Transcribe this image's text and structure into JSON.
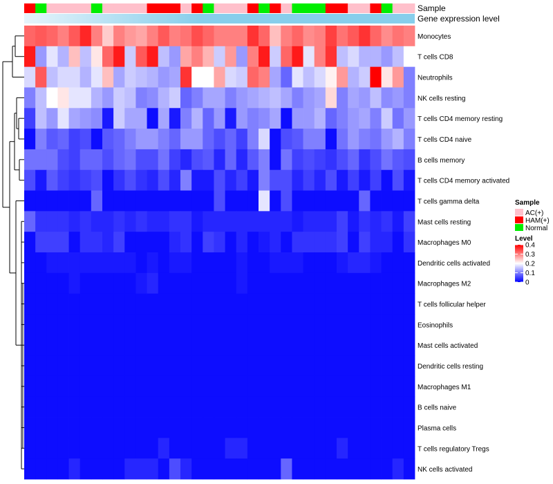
{
  "chart_data": {
    "type": "heatmap",
    "annotation_rows": [
      "Sample",
      "Gene expression level"
    ],
    "sample_annotation": [
      "HAM",
      "Normal",
      "AC",
      "AC",
      "AC",
      "AC",
      "Normal",
      "AC",
      "AC",
      "AC",
      "AC",
      "HAM",
      "HAM",
      "HAM",
      "AC",
      "HAM",
      "Normal",
      "AC",
      "AC",
      "AC",
      "HAM",
      "Normal",
      "HAM",
      "AC",
      "Normal",
      "Normal",
      "Normal",
      "HAM",
      "HAM",
      "AC",
      "AC",
      "HAM",
      "Normal",
      "AC",
      "AC"
    ],
    "rows": [
      "Monocytes",
      "T cells CD8",
      "Neutrophils",
      "NK cells resting",
      "T cells CD4 memory resting",
      "T cells CD4 naive",
      "B cells memory",
      "T cells CD4 memory activated",
      "T cells gamma delta",
      "Mast cells resting",
      "Macrophages M0",
      "Dendritic cells activated",
      "Macrophages M2",
      "T cells follicular helper",
      "Eosinophils",
      "Mast cells activated",
      "Dendritic cells resting",
      "Macrophages M1",
      "B cells naive",
      "Plasma cells",
      "T cells regulatory  Tregs",
      "NK cells activated"
    ],
    "values": [
      [
        0.32,
        0.33,
        0.32,
        0.3,
        0.33,
        0.37,
        0.3,
        0.24,
        0.3,
        0.28,
        0.27,
        0.3,
        0.33,
        0.3,
        0.31,
        0.34,
        0.32,
        0.3,
        0.3,
        0.3,
        0.36,
        0.32,
        0.25,
        0.3,
        0.32,
        0.29,
        0.3,
        0.35,
        0.31,
        0.33,
        0.36,
        0.32,
        0.29,
        0.31,
        0.3
      ],
      [
        0.38,
        0.12,
        0.18,
        0.14,
        0.25,
        0.15,
        0.22,
        0.32,
        0.38,
        0.16,
        0.33,
        0.38,
        0.15,
        0.12,
        0.27,
        0.3,
        0.26,
        0.16,
        0.28,
        0.12,
        0.3,
        0.38,
        0.16,
        0.32,
        0.38,
        0.18,
        0.3,
        0.36,
        0.15,
        0.17,
        0.14,
        0.14,
        0.12,
        0.15,
        0.2
      ],
      [
        0.17,
        0.33,
        0.15,
        0.17,
        0.17,
        0.14,
        0.18,
        0.25,
        0.13,
        0.16,
        0.15,
        0.14,
        0.12,
        0.13,
        0.36,
        0.2,
        0.2,
        0.27,
        0.17,
        0.16,
        0.32,
        0.3,
        0.13,
        0.08,
        0.18,
        0.15,
        0.17,
        0.21,
        0.28,
        0.14,
        0.16,
        0.4,
        0.22,
        0.28,
        0.1
      ],
      [
        0.1,
        0.15,
        0.2,
        0.22,
        0.18,
        0.18,
        0.14,
        0.12,
        0.16,
        0.15,
        0.1,
        0.11,
        0.14,
        0.16,
        0.08,
        0.1,
        0.13,
        0.13,
        0.1,
        0.12,
        0.13,
        0.14,
        0.15,
        0.13,
        0.1,
        0.12,
        0.13,
        0.23,
        0.1,
        0.13,
        0.12,
        0.15,
        0.11,
        0.12,
        0.1
      ],
      [
        0.05,
        0.15,
        0.12,
        0.18,
        0.13,
        0.12,
        0.11,
        0.02,
        0.16,
        0.13,
        0.13,
        0.01,
        0.13,
        0.02,
        0.1,
        0.14,
        0.08,
        0.12,
        0.02,
        0.12,
        0.1,
        0.11,
        0.13,
        0.01,
        0.12,
        0.12,
        0.14,
        0.08,
        0.1,
        0.12,
        0.13,
        0.1,
        0.16,
        0.09,
        0.12
      ],
      [
        0.01,
        0.1,
        0.07,
        0.08,
        0.05,
        0.06,
        0.01,
        0.07,
        0.08,
        0.1,
        0.12,
        0.12,
        0.1,
        0.08,
        0.12,
        0.12,
        0.08,
        0.06,
        0.08,
        0.05,
        0.1,
        0.17,
        0.01,
        0.06,
        0.07,
        0.1,
        0.1,
        0.01,
        0.09,
        0.12,
        0.1,
        0.09,
        0.12,
        0.14,
        0.1
      ],
      [
        0.09,
        0.09,
        0.09,
        0.06,
        0.05,
        0.08,
        0.08,
        0.06,
        0.08,
        0.09,
        0.06,
        0.06,
        0.09,
        0.05,
        0.03,
        0.06,
        0.07,
        0.03,
        0.08,
        0.03,
        0.07,
        0.1,
        0.01,
        0.09,
        0.05,
        0.06,
        0.05,
        0.04,
        0.06,
        0.08,
        0.04,
        0.06,
        0.09,
        0.07,
        0.06
      ],
      [
        0.06,
        0.02,
        0.07,
        0.05,
        0.04,
        0.05,
        0.06,
        0.01,
        0.04,
        0.06,
        0.04,
        0.03,
        0.06,
        0.03,
        0.1,
        0.02,
        0.02,
        0.06,
        0.03,
        0.05,
        0.02,
        0.1,
        0.06,
        0.06,
        0.03,
        0.05,
        0.03,
        0.06,
        0.02,
        0.05,
        0.02,
        0.05,
        0.01,
        0.06,
        0.02
      ],
      [
        0.01,
        0.01,
        0.01,
        0.01,
        0.01,
        0.01,
        0.08,
        0.01,
        0.01,
        0.01,
        0.01,
        0.01,
        0.01,
        0.01,
        0.01,
        0.01,
        0.01,
        0.06,
        0.01,
        0.01,
        0.01,
        0.18,
        0.01,
        0.06,
        0.01,
        0.01,
        0.01,
        0.01,
        0.01,
        0.01,
        0.08,
        0.01,
        0.01,
        0.01,
        0.01
      ],
      [
        0.08,
        0.04,
        0.04,
        0.04,
        0.03,
        0.04,
        0.03,
        0.03,
        0.04,
        0.03,
        0.04,
        0.03,
        0.03,
        0.04,
        0.04,
        0.02,
        0.03,
        0.03,
        0.03,
        0.03,
        0.03,
        0.03,
        0.03,
        0.03,
        0.02,
        0.03,
        0.03,
        0.03,
        0.05,
        0.02,
        0.04,
        0.03,
        0.04,
        0.02,
        0.05
      ],
      [
        0.01,
        0.05,
        0.05,
        0.05,
        0.01,
        0.04,
        0.04,
        0.03,
        0.05,
        0.01,
        0.01,
        0.01,
        0.01,
        0.03,
        0.04,
        0.01,
        0.05,
        0.04,
        0.01,
        0.03,
        0.01,
        0.02,
        0.03,
        0.01,
        0.04,
        0.04,
        0.04,
        0.04,
        0.05,
        0.01,
        0.05,
        0.03,
        0.03,
        0.01,
        0.04
      ],
      [
        0.01,
        0.01,
        0.02,
        0.02,
        0.02,
        0.02,
        0.02,
        0.02,
        0.02,
        0.02,
        0.01,
        0.02,
        0.01,
        0.02,
        0.02,
        0.01,
        0.01,
        0.01,
        0.01,
        0.02,
        0.01,
        0.01,
        0.02,
        0.02,
        0.02,
        0.01,
        0.01,
        0.01,
        0.02,
        0.03,
        0.03,
        0.02,
        0.01,
        0.01,
        0.01
      ],
      [
        0.01,
        0.01,
        0.01,
        0.01,
        0.02,
        0.01,
        0.01,
        0.01,
        0.01,
        0.01,
        0.02,
        0.03,
        0.01,
        0.01,
        0.01,
        0.01,
        0.01,
        0.01,
        0.01,
        0.02,
        0.01,
        0.01,
        0.01,
        0.01,
        0.01,
        0.01,
        0.01,
        0.01,
        0.01,
        0.01,
        0.01,
        0.01,
        0.01,
        0.01,
        0.01
      ],
      [
        0.01,
        0.01,
        0.01,
        0.01,
        0.01,
        0.01,
        0.01,
        0.01,
        0.01,
        0.01,
        0.01,
        0.01,
        0.01,
        0.01,
        0.01,
        0.01,
        0.01,
        0.01,
        0.01,
        0.01,
        0.01,
        0.01,
        0.01,
        0.01,
        0.01,
        0.01,
        0.01,
        0.01,
        0.01,
        0.01,
        0.01,
        0.01,
        0.01,
        0.01,
        0.01
      ],
      [
        0.01,
        0.01,
        0.01,
        0.01,
        0.01,
        0.01,
        0.01,
        0.01,
        0.01,
        0.01,
        0.01,
        0.01,
        0.01,
        0.01,
        0.01,
        0.01,
        0.01,
        0.01,
        0.01,
        0.01,
        0.01,
        0.01,
        0.01,
        0.01,
        0.01,
        0.01,
        0.01,
        0.01,
        0.01,
        0.01,
        0.01,
        0.01,
        0.01,
        0.01,
        0.01
      ],
      [
        0.01,
        0.01,
        0.01,
        0.01,
        0.01,
        0.01,
        0.01,
        0.01,
        0.01,
        0.01,
        0.01,
        0.01,
        0.01,
        0.01,
        0.01,
        0.01,
        0.01,
        0.01,
        0.01,
        0.01,
        0.01,
        0.01,
        0.01,
        0.01,
        0.01,
        0.01,
        0.01,
        0.01,
        0.01,
        0.01,
        0.01,
        0.01,
        0.01,
        0.01,
        0.01
      ],
      [
        0.01,
        0.01,
        0.01,
        0.01,
        0.01,
        0.01,
        0.01,
        0.01,
        0.01,
        0.01,
        0.01,
        0.01,
        0.01,
        0.01,
        0.01,
        0.01,
        0.01,
        0.01,
        0.01,
        0.01,
        0.01,
        0.01,
        0.01,
        0.01,
        0.01,
        0.01,
        0.01,
        0.01,
        0.01,
        0.01,
        0.01,
        0.01,
        0.01,
        0.01,
        0.01
      ],
      [
        0.01,
        0.01,
        0.01,
        0.01,
        0.01,
        0.01,
        0.01,
        0.01,
        0.01,
        0.01,
        0.01,
        0.01,
        0.01,
        0.01,
        0.01,
        0.01,
        0.01,
        0.01,
        0.01,
        0.01,
        0.01,
        0.01,
        0.01,
        0.01,
        0.01,
        0.01,
        0.01,
        0.01,
        0.01,
        0.01,
        0.01,
        0.01,
        0.01,
        0.01,
        0.01
      ],
      [
        0.01,
        0.01,
        0.01,
        0.01,
        0.01,
        0.01,
        0.01,
        0.01,
        0.01,
        0.01,
        0.01,
        0.01,
        0.01,
        0.01,
        0.01,
        0.01,
        0.01,
        0.01,
        0.01,
        0.01,
        0.01,
        0.01,
        0.01,
        0.01,
        0.01,
        0.01,
        0.01,
        0.01,
        0.01,
        0.01,
        0.01,
        0.01,
        0.01,
        0.01,
        0.01
      ],
      [
        0.01,
        0.01,
        0.01,
        0.01,
        0.01,
        0.01,
        0.01,
        0.01,
        0.01,
        0.01,
        0.01,
        0.01,
        0.01,
        0.01,
        0.01,
        0.01,
        0.01,
        0.01,
        0.01,
        0.01,
        0.01,
        0.01,
        0.01,
        0.01,
        0.01,
        0.01,
        0.01,
        0.01,
        0.01,
        0.01,
        0.01,
        0.01,
        0.01,
        0.01,
        0.01
      ],
      [
        0.01,
        0.01,
        0.01,
        0.01,
        0.01,
        0.01,
        0.01,
        0.01,
        0.01,
        0.01,
        0.01,
        0.01,
        0.03,
        0.01,
        0.01,
        0.01,
        0.01,
        0.01,
        0.03,
        0.03,
        0.01,
        0.01,
        0.01,
        0.01,
        0.01,
        0.01,
        0.01,
        0.01,
        0.03,
        0.01,
        0.01,
        0.01,
        0.01,
        0.01,
        0.01
      ],
      [
        0.01,
        0.01,
        0.01,
        0.01,
        0.03,
        0.01,
        0.01,
        0.01,
        0.01,
        0.03,
        0.03,
        0.03,
        0.01,
        0.06,
        0.03,
        0.01,
        0.01,
        0.01,
        0.01,
        0.01,
        0.01,
        0.01,
        0.01,
        0.08,
        0.01,
        0.01,
        0.01,
        0.01,
        0.01,
        0.01,
        0.01,
        0.01,
        0.01,
        0.03,
        0.01
      ]
    ],
    "legend": {
      "sample": {
        "title": "Sample",
        "items": [
          {
            "key": "AC",
            "label": "AC(+)",
            "color": "#ffc0cb"
          },
          {
            "key": "HAM",
            "label": "HAM(+)",
            "color": "#ff0000"
          },
          {
            "key": "Normal",
            "label": "Normal",
            "color": "#00ee00"
          }
        ]
      },
      "level": {
        "title": "Level",
        "ticks": [
          0.4,
          0.3,
          0.2,
          0.1,
          0
        ],
        "range": [
          0,
          0.4
        ]
      }
    },
    "colors": {
      "low": "#0000ff",
      "mid": "#ffffff",
      "high": "#ff0000",
      "expression_bar": "#87ceeb",
      "expression_bar_light": "#e6f4fb",
      "dendrogram": "#000000"
    }
  }
}
